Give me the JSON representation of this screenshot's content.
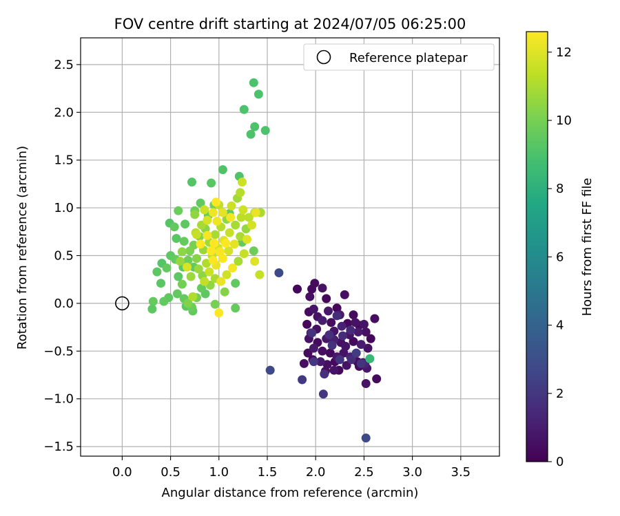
{
  "chart_data": {
    "type": "scatter",
    "title": "FOV centre drift starting at 2024/07/05 06:25:00",
    "xlabel": "Angular distance from reference (arcmin)",
    "ylabel": "Rotation from reference (arcmin)",
    "xlim": [
      -0.43,
      3.9
    ],
    "ylim": [
      -1.6,
      2.78
    ],
    "xticks": [
      "0.0",
      "0.5",
      "1.0",
      "1.5",
      "2.0",
      "2.5",
      "3.0",
      "3.5"
    ],
    "xtick_values": [
      0,
      0.5,
      1,
      1.5,
      2,
      2.5,
      3,
      3.5
    ],
    "yticks": [
      "−1.5",
      "−1.0",
      "−0.5",
      "0.0",
      "0.5",
      "1.0",
      "1.5",
      "2.0",
      "2.5"
    ],
    "ytick_values": [
      -1.5,
      -1.0,
      -0.5,
      0,
      0.5,
      1.0,
      1.5,
      2.0,
      2.5
    ],
    "grid": true,
    "legend": {
      "label": "Reference platepar",
      "placement": "top-right"
    },
    "reference_point": {
      "x": 0.0,
      "y": 0.0
    },
    "colorbar": {
      "label": "Hours from first FF file",
      "colormap": "viridis",
      "range": [
        0,
        12.6
      ],
      "ticks": [
        "0",
        "2",
        "4",
        "6",
        "8",
        "10",
        "12"
      ],
      "tick_values": [
        0,
        2,
        4,
        6,
        8,
        10,
        12
      ]
    },
    "points": [
      {
        "x": 1.96,
        "y": 0.15,
        "c": 0.3
      },
      {
        "x": 1.99,
        "y": 0.21,
        "c": 0.4
      },
      {
        "x": 1.81,
        "y": 0.15,
        "c": 0.2
      },
      {
        "x": 1.94,
        "y": 0.07,
        "c": 0.5
      },
      {
        "x": 2.07,
        "y": 0.16,
        "c": 0.6
      },
      {
        "x": 2.11,
        "y": 0.05,
        "c": 0.3
      },
      {
        "x": 2.3,
        "y": 0.09,
        "c": 0.5
      },
      {
        "x": 1.93,
        "y": -0.09,
        "c": 0.4
      },
      {
        "x": 1.98,
        "y": -0.06,
        "c": 0.7
      },
      {
        "x": 2.02,
        "y": -0.14,
        "c": 0.6
      },
      {
        "x": 2.13,
        "y": -0.08,
        "c": 0.8
      },
      {
        "x": 2.22,
        "y": -0.05,
        "c": 0.2
      },
      {
        "x": 2.25,
        "y": -0.12,
        "c": 0.9
      },
      {
        "x": 2.39,
        "y": -0.12,
        "c": 0.4
      },
      {
        "x": 2.41,
        "y": -0.2,
        "c": 0.6
      },
      {
        "x": 2.45,
        "y": -0.23,
        "c": 0.3
      },
      {
        "x": 2.5,
        "y": -0.22,
        "c": 0.7
      },
      {
        "x": 2.61,
        "y": -0.16,
        "c": 0.5
      },
      {
        "x": 1.91,
        "y": -0.22,
        "c": 0.2
      },
      {
        "x": 1.95,
        "y": -0.31,
        "c": 0.8
      },
      {
        "x": 2.01,
        "y": -0.27,
        "c": 0.5
      },
      {
        "x": 2.07,
        "y": -0.18,
        "c": 1.0
      },
      {
        "x": 2.16,
        "y": -0.2,
        "c": 0.4
      },
      {
        "x": 2.19,
        "y": -0.29,
        "c": 0.7
      },
      {
        "x": 2.27,
        "y": -0.24,
        "c": 1.2
      },
      {
        "x": 2.33,
        "y": -0.21,
        "c": 0.3
      },
      {
        "x": 2.35,
        "y": -0.33,
        "c": 0.6
      },
      {
        "x": 2.44,
        "y": -0.3,
        "c": 0.9
      },
      {
        "x": 2.52,
        "y": -0.3,
        "c": 0.5
      },
      {
        "x": 2.57,
        "y": -0.37,
        "c": 0.2
      },
      {
        "x": 1.93,
        "y": -0.37,
        "c": 0.6
      },
      {
        "x": 2.02,
        "y": -0.41,
        "c": 0.4
      },
      {
        "x": 2.11,
        "y": -0.37,
        "c": 0.8
      },
      {
        "x": 2.19,
        "y": -0.38,
        "c": 1.1
      },
      {
        "x": 2.26,
        "y": -0.41,
        "c": 0.5
      },
      {
        "x": 2.31,
        "y": -0.45,
        "c": 0.7
      },
      {
        "x": 2.39,
        "y": -0.4,
        "c": 0.3
      },
      {
        "x": 2.47,
        "y": -0.43,
        "c": 1.0
      },
      {
        "x": 2.54,
        "y": -0.47,
        "c": 0.6
      },
      {
        "x": 1.92,
        "y": -0.52,
        "c": 0.4
      },
      {
        "x": 1.98,
        "y": -0.47,
        "c": 0.9
      },
      {
        "x": 2.07,
        "y": -0.5,
        "c": 0.5
      },
      {
        "x": 2.15,
        "y": -0.52,
        "c": 0.3
      },
      {
        "x": 2.22,
        "y": -0.56,
        "c": 0.8
      },
      {
        "x": 2.29,
        "y": -0.52,
        "c": 0.6
      },
      {
        "x": 2.36,
        "y": -0.56,
        "c": 1.2
      },
      {
        "x": 2.43,
        "y": -0.61,
        "c": 0.4
      },
      {
        "x": 2.49,
        "y": -0.62,
        "c": 0.7
      },
      {
        "x": 1.88,
        "y": -0.63,
        "c": 0.5
      },
      {
        "x": 1.97,
        "y": -0.59,
        "c": 0.2
      },
      {
        "x": 2.05,
        "y": -0.61,
        "c": 0.9
      },
      {
        "x": 2.12,
        "y": -0.64,
        "c": 0.5
      },
      {
        "x": 2.2,
        "y": -0.61,
        "c": 0.3
      },
      {
        "x": 2.32,
        "y": -0.65,
        "c": 0.6
      },
      {
        "x": 2.45,
        "y": -0.66,
        "c": 0.4
      },
      {
        "x": 2.53,
        "y": -0.68,
        "c": 0.8
      },
      {
        "x": 2.1,
        "y": -0.71,
        "c": 0.5
      },
      {
        "x": 2.19,
        "y": -0.7,
        "c": 0.7
      },
      {
        "x": 2.24,
        "y": -0.7,
        "c": 0.3
      },
      {
        "x": 2.63,
        "y": -0.79,
        "c": 0.4
      },
      {
        "x": 2.52,
        "y": -0.84,
        "c": 0.6
      },
      {
        "x": 2.28,
        "y": -0.34,
        "c": 1.6
      },
      {
        "x": 2.17,
        "y": -0.44,
        "c": 1.8
      },
      {
        "x": 2.36,
        "y": -0.28,
        "c": 1.5
      },
      {
        "x": 2.09,
        "y": -0.74,
        "c": 1.7
      },
      {
        "x": 1.98,
        "y": -0.61,
        "c": 2.0
      },
      {
        "x": 2.37,
        "y": -0.59,
        "c": 1.6
      },
      {
        "x": 2.08,
        "y": -0.95,
        "c": 2.0
      },
      {
        "x": 1.86,
        "y": -0.8,
        "c": 2.1
      },
      {
        "x": 2.25,
        "y": -0.59,
        "c": 1.9
      },
      {
        "x": 1.96,
        "y": -0.31,
        "c": 1.8
      },
      {
        "x": 2.14,
        "y": -0.33,
        "c": 1.7
      },
      {
        "x": 2.42,
        "y": -0.52,
        "c": 2.2
      },
      {
        "x": 2.47,
        "y": -0.63,
        "c": 1.9
      },
      {
        "x": 2.22,
        "y": -0.13,
        "c": 1.6
      },
      {
        "x": 1.62,
        "y": 0.32,
        "c": 2.8
      },
      {
        "x": 1.53,
        "y": -0.7,
        "c": 2.8
      },
      {
        "x": 2.52,
        "y": -1.41,
        "c": 2.8
      },
      {
        "x": 2.56,
        "y": -0.58,
        "c": 8.4
      },
      {
        "x": 2.51,
        "y": -0.63,
        "c": 1.3
      },
      {
        "x": 1.36,
        "y": 2.31,
        "c": 9.0
      },
      {
        "x": 1.41,
        "y": 2.19,
        "c": 9.0
      },
      {
        "x": 1.26,
        "y": 2.03,
        "c": 9.0
      },
      {
        "x": 1.37,
        "y": 1.85,
        "c": 9.0
      },
      {
        "x": 1.33,
        "y": 1.77,
        "c": 9.0
      },
      {
        "x": 1.48,
        "y": 1.81,
        "c": 9.0
      },
      {
        "x": 1.04,
        "y": 1.4,
        "c": 9.1
      },
      {
        "x": 1.21,
        "y": 1.33,
        "c": 9.1
      },
      {
        "x": 0.72,
        "y": 1.27,
        "c": 9.2
      },
      {
        "x": 0.92,
        "y": 1.26,
        "c": 9.3
      },
      {
        "x": 0.31,
        "y": -0.06,
        "c": 9.4
      },
      {
        "x": 0.32,
        "y": 0.02,
        "c": 9.6
      },
      {
        "x": 0.43,
        "y": 0.02,
        "c": 9.5
      },
      {
        "x": 0.48,
        "y": 0.06,
        "c": 9.4
      },
      {
        "x": 0.4,
        "y": 0.21,
        "c": 9.3
      },
      {
        "x": 0.36,
        "y": 0.33,
        "c": 9.4
      },
      {
        "x": 0.41,
        "y": 0.42,
        "c": 9.2
      },
      {
        "x": 0.46,
        "y": 0.37,
        "c": 9.5
      },
      {
        "x": 0.5,
        "y": 0.5,
        "c": 9.4
      },
      {
        "x": 0.55,
        "y": 0.46,
        "c": 9.6
      },
      {
        "x": 0.56,
        "y": 0.68,
        "c": 9.3
      },
      {
        "x": 0.49,
        "y": 0.84,
        "c": 9.2
      },
      {
        "x": 0.54,
        "y": 0.8,
        "c": 9.5
      },
      {
        "x": 0.58,
        "y": 0.97,
        "c": 9.7
      },
      {
        "x": 0.65,
        "y": 0.83,
        "c": 9.4
      },
      {
        "x": 0.64,
        "y": 0.65,
        "c": 9.6
      },
      {
        "x": 0.63,
        "y": 0.38,
        "c": 9.4
      },
      {
        "x": 0.68,
        "y": 0.45,
        "c": 9.8
      },
      {
        "x": 0.74,
        "y": 0.38,
        "c": 9.5
      },
      {
        "x": 0.58,
        "y": 0.28,
        "c": 9.4
      },
      {
        "x": 0.62,
        "y": 0.2,
        "c": 9.9
      },
      {
        "x": 0.57,
        "y": 0.1,
        "c": 9.5
      },
      {
        "x": 0.64,
        "y": 0.05,
        "c": 9.6
      },
      {
        "x": 0.66,
        "y": -0.03,
        "c": 9.4
      },
      {
        "x": 0.72,
        "y": -0.04,
        "c": 9.7
      },
      {
        "x": 0.73,
        "y": -0.08,
        "c": 9.5
      },
      {
        "x": 0.77,
        "y": 0.06,
        "c": 9.9
      },
      {
        "x": 0.82,
        "y": 0.16,
        "c": 9.6
      },
      {
        "x": 0.86,
        "y": 0.1,
        "c": 9.4
      },
      {
        "x": 0.81,
        "y": 1.05,
        "c": 9.5
      },
      {
        "x": 0.75,
        "y": 0.97,
        "c": 9.8
      },
      {
        "x": 0.89,
        "y": 0.92,
        "c": 9.6
      },
      {
        "x": 1.17,
        "y": 0.21,
        "c": 9.5
      },
      {
        "x": 1.17,
        "y": -0.05,
        "c": 9.6
      },
      {
        "x": 1.36,
        "y": 0.55,
        "c": 9.8
      },
      {
        "x": 1.24,
        "y": 0.64,
        "c": 9.6
      },
      {
        "x": 1.11,
        "y": 0.94,
        "c": 9.5
      },
      {
        "x": 0.95,
        "y": 1.03,
        "c": 9.9
      },
      {
        "x": 0.74,
        "y": 0.61,
        "c": 10.0
      },
      {
        "x": 0.8,
        "y": 0.7,
        "c": 10.2
      },
      {
        "x": 0.86,
        "y": 0.78,
        "c": 10.4
      },
      {
        "x": 0.7,
        "y": 0.55,
        "c": 10.1
      },
      {
        "x": 0.77,
        "y": 0.47,
        "c": 10.3
      },
      {
        "x": 0.84,
        "y": 0.56,
        "c": 10.6
      },
      {
        "x": 0.9,
        "y": 0.64,
        "c": 10.8
      },
      {
        "x": 0.96,
        "y": 0.72,
        "c": 11.0
      },
      {
        "x": 1.02,
        "y": 0.8,
        "c": 11.2
      },
      {
        "x": 1.08,
        "y": 0.88,
        "c": 10.5
      },
      {
        "x": 0.79,
        "y": 0.36,
        "c": 10.7
      },
      {
        "x": 0.87,
        "y": 0.42,
        "c": 11.1
      },
      {
        "x": 0.93,
        "y": 0.5,
        "c": 11.4
      },
      {
        "x": 0.99,
        "y": 0.58,
        "c": 11.7
      },
      {
        "x": 1.05,
        "y": 0.66,
        "c": 12.0
      },
      {
        "x": 1.11,
        "y": 0.74,
        "c": 11.5
      },
      {
        "x": 1.17,
        "y": 0.82,
        "c": 10.9
      },
      {
        "x": 1.23,
        "y": 0.9,
        "c": 11.3
      },
      {
        "x": 0.83,
        "y": 0.29,
        "c": 10.4
      },
      {
        "x": 0.9,
        "y": 0.33,
        "c": 11.6
      },
      {
        "x": 0.97,
        "y": 0.4,
        "c": 12.2
      },
      {
        "x": 1.04,
        "y": 0.47,
        "c": 12.5
      },
      {
        "x": 1.1,
        "y": 0.55,
        "c": 11.8
      },
      {
        "x": 1.16,
        "y": 0.62,
        "c": 12.1
      },
      {
        "x": 1.22,
        "y": 0.7,
        "c": 11.0
      },
      {
        "x": 1.28,
        "y": 0.78,
        "c": 10.6
      },
      {
        "x": 0.88,
        "y": 0.87,
        "c": 11.9
      },
      {
        "x": 0.94,
        "y": 0.95,
        "c": 12.3
      },
      {
        "x": 1.0,
        "y": 1.03,
        "c": 11.4
      },
      {
        "x": 0.76,
        "y": 0.74,
        "c": 11.2
      },
      {
        "x": 0.82,
        "y": 0.82,
        "c": 10.9
      },
      {
        "x": 1.13,
        "y": 1.02,
        "c": 11.6
      },
      {
        "x": 1.19,
        "y": 1.1,
        "c": 10.8
      },
      {
        "x": 1.25,
        "y": 0.98,
        "c": 11.7
      },
      {
        "x": 1.31,
        "y": 0.9,
        "c": 11.3
      },
      {
        "x": 1.37,
        "y": 0.95,
        "c": 11.0
      },
      {
        "x": 1.43,
        "y": 0.95,
        "c": 10.6
      },
      {
        "x": 1.34,
        "y": 0.82,
        "c": 11.8
      },
      {
        "x": 1.29,
        "y": 0.67,
        "c": 12.0
      },
      {
        "x": 1.26,
        "y": 0.52,
        "c": 11.5
      },
      {
        "x": 1.2,
        "y": 0.44,
        "c": 10.9
      },
      {
        "x": 1.14,
        "y": 0.37,
        "c": 12.4
      },
      {
        "x": 1.08,
        "y": 0.3,
        "c": 11.7
      },
      {
        "x": 1.02,
        "y": 0.23,
        "c": 12.2
      },
      {
        "x": 0.96,
        "y": 0.26,
        "c": 11.0
      },
      {
        "x": 0.91,
        "y": 0.19,
        "c": 10.5
      },
      {
        "x": 0.85,
        "y": 0.23,
        "c": 11.4
      },
      {
        "x": 0.71,
        "y": 0.28,
        "c": 10.7
      },
      {
        "x": 0.67,
        "y": 0.38,
        "c": 11.9
      },
      {
        "x": 0.73,
        "y": 0.07,
        "c": 11.1
      },
      {
        "x": 0.81,
        "y": 0.62,
        "c": 12.6
      },
      {
        "x": 0.88,
        "y": 0.71,
        "c": 12.4
      },
      {
        "x": 0.95,
        "y": 0.63,
        "c": 12.6
      },
      {
        "x": 1.01,
        "y": 0.54,
        "c": 12.5
      },
      {
        "x": 1.07,
        "y": 0.63,
        "c": 12.6
      },
      {
        "x": 0.98,
        "y": 0.86,
        "c": 12.3
      },
      {
        "x": 1.04,
        "y": 0.95,
        "c": 12.1
      },
      {
        "x": 0.94,
        "y": 0.45,
        "c": 12.6
      },
      {
        "x": 0.92,
        "y": 0.55,
        "c": 12.6
      },
      {
        "x": 1.12,
        "y": 0.9,
        "c": 12.4
      },
      {
        "x": 0.97,
        "y": 1.06,
        "c": 12.6
      },
      {
        "x": 0.68,
        "y": 0.0,
        "c": 10.2
      },
      {
        "x": 0.96,
        "y": -0.01,
        "c": 10.0
      },
      {
        "x": 1.06,
        "y": 0.12,
        "c": 10.3
      },
      {
        "x": 1.0,
        "y": -0.1,
        "c": 12.6
      },
      {
        "x": 1.42,
        "y": 0.3,
        "c": 11.5
      },
      {
        "x": 1.37,
        "y": 0.44,
        "c": 12.0
      },
      {
        "x": 1.22,
        "y": 1.16,
        "c": 11.2
      },
      {
        "x": 1.24,
        "y": 1.27,
        "c": 11.6
      },
      {
        "x": 1.43,
        "y": 0.95,
        "c": 11.0
      },
      {
        "x": 1.38,
        "y": 0.95,
        "c": 12.2
      },
      {
        "x": 0.6,
        "y": 0.44,
        "c": 10.6
      },
      {
        "x": 0.62,
        "y": 0.54,
        "c": 10.4
      },
      {
        "x": 0.75,
        "y": 0.93,
        "c": 10.5
      },
      {
        "x": 0.77,
        "y": 0.72,
        "c": 11.5
      },
      {
        "x": 0.85,
        "y": 0.98,
        "c": 11.6
      }
    ]
  }
}
